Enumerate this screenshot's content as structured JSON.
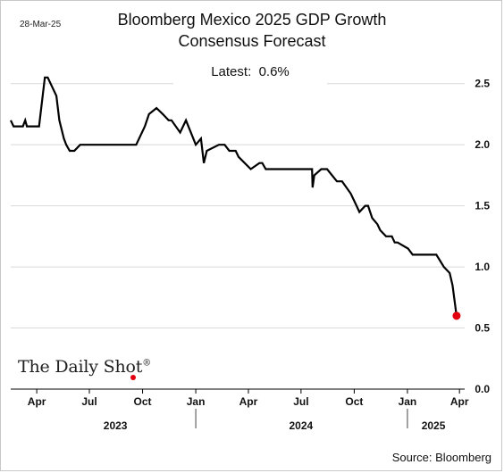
{
  "date_stamp": "28-Mar-25",
  "title_line_1": "Bloomberg Mexico 2025 GDP Growth",
  "title_line_2": "Consensus Forecast",
  "latest_label": "Latest:",
  "latest_value": "0.6%",
  "source": "Source: Bloomberg",
  "logo_text": "The Daily Shot",
  "logo_mark": "®",
  "colors": {
    "line": "#000000",
    "marker": "#e3000f",
    "grid": "#d9d9d9",
    "axis": "#000000"
  },
  "chart_data": {
    "type": "line",
    "title": "Bloomberg Mexico 2025 GDP Growth Consensus Forecast",
    "xlabel": "",
    "ylabel": "",
    "grid": true,
    "y_axis_side": "right",
    "ylim": [
      0,
      2.6
    ],
    "xlim": [
      "2023-02-15",
      "2025-04-10"
    ],
    "y_ticks": [
      0.0,
      0.5,
      1.0,
      1.5,
      2.0,
      2.5
    ],
    "y_tick_labels": [
      "0.0",
      "0.5",
      "1.0",
      "1.5",
      "2.0",
      "2.5"
    ],
    "x_month_ticks": [
      {
        "label": "Apr",
        "date": "2023-04-01"
      },
      {
        "label": "Jul",
        "date": "2023-07-01"
      },
      {
        "label": "Oct",
        "date": "2023-10-01"
      },
      {
        "label": "Jan",
        "date": "2024-01-01"
      },
      {
        "label": "Apr",
        "date": "2024-04-01"
      },
      {
        "label": "Jul",
        "date": "2024-07-01"
      },
      {
        "label": "Oct",
        "date": "2024-10-01"
      },
      {
        "label": "Jan",
        "date": "2025-01-01"
      },
      {
        "label": "Apr",
        "date": "2025-04-01"
      }
    ],
    "x_year_labels": [
      {
        "label": "2023",
        "date": "2023-08-15"
      },
      {
        "label": "2024",
        "date": "2024-07-01"
      },
      {
        "label": "2025",
        "date": "2025-02-15"
      }
    ],
    "x_year_dividers": [
      "2024-01-01",
      "2025-01-01"
    ],
    "series": [
      {
        "name": "",
        "x": [
          "2023-02-15",
          "2023-02-20",
          "2023-03-08",
          "2023-03-12",
          "2023-03-15",
          "2023-04-05",
          "2023-04-15",
          "2023-04-20",
          "2023-05-05",
          "2023-05-10",
          "2023-05-18",
          "2023-05-22",
          "2023-05-28",
          "2023-06-05",
          "2023-06-15",
          "2023-07-01",
          "2023-09-20",
          "2023-10-05",
          "2023-10-12",
          "2023-10-25",
          "2023-11-05",
          "2023-11-15",
          "2023-11-20",
          "2023-12-05",
          "2023-12-15",
          "2024-01-01",
          "2024-01-10",
          "2024-01-15",
          "2024-01-20",
          "2024-02-10",
          "2024-02-20",
          "2024-02-28",
          "2024-03-10",
          "2024-03-15",
          "2024-04-05",
          "2024-04-20",
          "2024-04-25",
          "2024-05-01",
          "2024-05-05",
          "2024-05-15",
          "2024-07-01",
          "2024-07-20",
          "2024-07-21",
          "2024-07-24",
          "2024-08-05",
          "2024-08-15",
          "2024-09-01",
          "2024-09-10",
          "2024-09-25",
          "2024-10-05",
          "2024-10-10",
          "2024-10-20",
          "2024-10-25",
          "2024-11-01",
          "2024-11-10",
          "2024-11-15",
          "2024-11-25",
          "2024-12-05",
          "2024-12-10",
          "2024-12-15",
          "2025-01-02",
          "2025-01-10",
          "2025-02-20",
          "2025-03-05",
          "2025-03-15",
          "2025-03-20",
          "2025-03-27"
        ],
        "y": [
          2.2,
          2.15,
          2.15,
          2.2,
          2.15,
          2.15,
          2.55,
          2.55,
          2.4,
          2.2,
          2.05,
          2.0,
          1.95,
          1.95,
          2.0,
          2.0,
          2.0,
          2.15,
          2.25,
          2.3,
          2.25,
          2.2,
          2.2,
          2.1,
          2.2,
          2.0,
          2.05,
          1.85,
          1.95,
          2.0,
          2.0,
          1.95,
          1.95,
          1.9,
          1.8,
          1.85,
          1.85,
          1.8,
          1.8,
          1.8,
          1.8,
          1.8,
          1.65,
          1.75,
          1.8,
          1.8,
          1.7,
          1.7,
          1.6,
          1.5,
          1.45,
          1.5,
          1.5,
          1.4,
          1.35,
          1.3,
          1.25,
          1.25,
          1.2,
          1.2,
          1.15,
          1.1,
          1.1,
          1.0,
          0.95,
          0.85,
          0.6
        ]
      }
    ],
    "latest_point": {
      "x": "2025-03-27",
      "y": 0.6
    }
  }
}
